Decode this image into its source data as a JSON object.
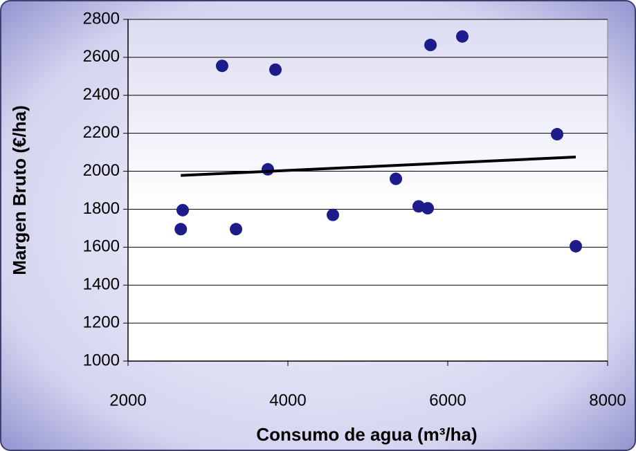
{
  "chart_data": {
    "type": "scatter",
    "xlabel": "Consumo de agua (m³/ha)",
    "ylabel": "Margen Bruto (€/ha)",
    "xlim": [
      2000,
      8000
    ],
    "xticks": [
      2000,
      4000,
      6000,
      8000
    ],
    "ylim": [
      1000,
      2800
    ],
    "yticks": [
      1000,
      1200,
      1400,
      1600,
      1800,
      2000,
      2200,
      2400,
      2600,
      2800
    ],
    "grid": true,
    "series": [
      {
        "type": "scatter",
        "color": "#1c1c8a",
        "x": [
          2660,
          2684,
          3177,
          3351,
          3844,
          3749,
          4563,
          5351,
          5636,
          5749,
          5784,
          6182,
          7368,
          7602
        ],
        "values": [
          1695,
          1795,
          2555,
          1695,
          2535,
          2010,
          1770,
          1960,
          1815,
          1805,
          2665,
          2710,
          2195,
          1605
        ]
      },
      {
        "type": "line",
        "color": "#000000",
        "x": [
          2660,
          7602
        ],
        "values": [
          1978,
          2075
        ]
      }
    ]
  }
}
